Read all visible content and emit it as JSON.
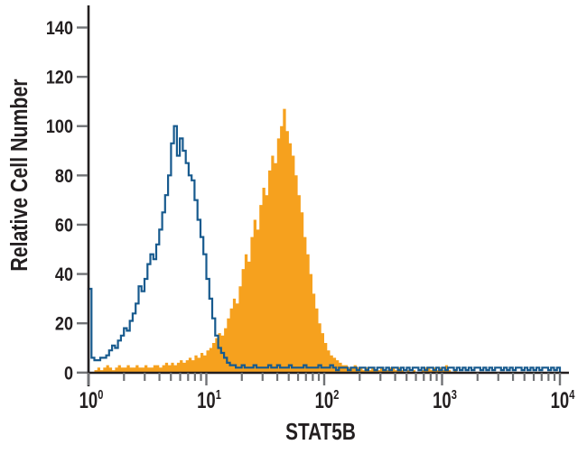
{
  "chart_data": {
    "type": "area",
    "variant": "flow-cytometry-step-histogram-overlay",
    "title": "",
    "xlabel": "STAT5B",
    "ylabel": "Relative Cell Number",
    "x_scale": "log10",
    "xlim": [
      1,
      10000
    ],
    "ylim": [
      0,
      148
    ],
    "grid": false,
    "legend": "none",
    "x_tick_base": "10",
    "x_tick_exponents": [
      "0",
      "1",
      "2",
      "3",
      "4"
    ],
    "y_ticks": [
      0,
      20,
      40,
      60,
      80,
      100,
      120,
      140
    ],
    "bin_width_log10": 0.025,
    "colors": {
      "axis": "#231F20",
      "tick": "#717376",
      "text": "#231F20",
      "background": "#ffffff"
    },
    "series": [
      {
        "name": "orange-filled-histogram",
        "style": "step-filled",
        "color": "#F6A11E",
        "peak_x": 45,
        "peak_y": 107,
        "values": [
          0,
          0,
          1,
          2,
          1,
          2,
          3,
          2,
          1,
          2,
          3,
          2,
          2,
          3,
          2,
          2,
          3,
          2,
          2,
          3,
          2,
          2,
          3,
          3,
          2,
          3,
          4,
          3,
          4,
          3,
          4,
          5,
          4,
          5,
          6,
          5,
          7,
          6,
          8,
          7,
          9,
          10,
          12,
          14,
          16,
          15,
          18,
          22,
          26,
          30,
          28,
          35,
          42,
          48,
          45,
          55,
          62,
          58,
          68,
          75,
          72,
          82,
          88,
          85,
          95,
          100,
          107,
          98,
          93,
          88,
          80,
          72,
          65,
          55,
          48,
          40,
          32,
          26,
          20,
          16,
          12,
          9,
          7,
          6,
          5,
          4,
          3,
          3,
          2,
          2,
          3,
          2,
          2,
          1,
          2,
          1,
          2,
          1,
          1,
          2,
          1,
          1,
          2,
          2,
          1,
          2,
          1,
          0,
          1,
          0,
          1,
          0,
          0,
          1,
          2,
          2,
          1,
          2,
          1,
          2,
          1,
          3,
          1,
          0,
          1,
          0,
          0,
          0,
          0,
          0,
          0,
          0,
          0,
          0,
          0,
          0,
          0,
          0,
          0,
          0,
          0,
          0,
          0,
          0,
          0,
          0,
          0,
          0,
          0,
          0,
          0,
          0,
          0,
          0,
          0,
          0,
          0,
          0,
          0,
          0
        ]
      },
      {
        "name": "blue-outline-histogram",
        "style": "step-outline",
        "color": "#175A8E",
        "peak_x": 5,
        "peak_y": 100,
        "values": [
          34,
          6,
          5,
          5,
          6,
          6,
          7,
          9,
          11,
          10,
          13,
          15,
          18,
          17,
          21,
          24,
          28,
          35,
          33,
          38,
          44,
          48,
          46,
          52,
          58,
          65,
          72,
          80,
          93,
          100,
          88,
          95,
          90,
          85,
          80,
          78,
          70,
          62,
          55,
          48,
          38,
          30,
          22,
          15,
          10,
          8,
          6,
          4,
          3,
          3,
          2,
          2,
          3,
          2,
          2,
          2,
          3,
          2,
          2,
          2,
          2,
          3,
          2,
          2,
          3,
          2,
          2,
          2,
          3,
          2,
          2,
          2,
          2,
          3,
          2,
          2,
          2,
          2,
          3,
          2,
          2,
          2,
          3,
          2,
          1,
          2,
          2,
          2,
          1,
          2,
          2,
          1,
          2,
          2,
          1,
          2,
          2,
          1,
          2,
          2,
          1,
          2,
          1,
          2,
          2,
          1,
          2,
          1,
          2,
          1,
          2,
          2,
          1,
          2,
          1,
          2,
          2,
          1,
          2,
          1,
          2,
          1,
          2,
          2,
          1,
          2,
          1,
          2,
          1,
          2,
          1,
          2,
          2,
          1,
          2,
          1,
          2,
          1,
          2,
          2,
          1,
          2,
          1,
          2,
          1,
          2,
          2,
          1,
          2,
          1,
          2,
          1,
          2,
          1,
          2,
          2,
          1,
          2,
          1,
          2
        ]
      }
    ]
  }
}
